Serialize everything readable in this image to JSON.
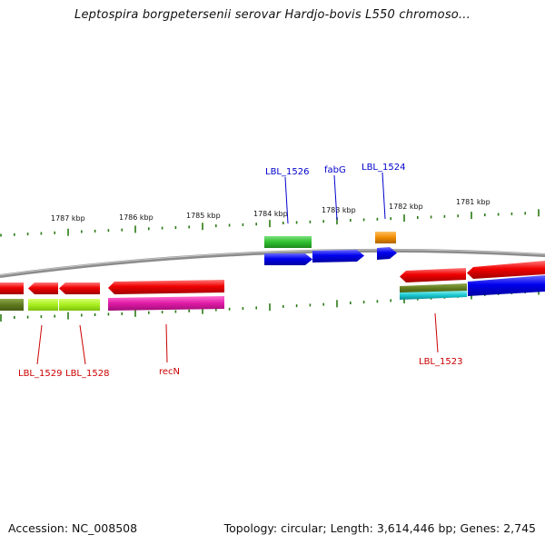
{
  "title": "Leptospira borgpetersenii serovar Hardjo-bovis L550 chromoso...",
  "footer": {
    "accession": "Accession: NC_008508",
    "info": "Topology: circular; Length: 3,614,446 bp; Genes: 2,745"
  },
  "colors": {
    "backbone": "#8c8c8c",
    "tick": "#2a7a14",
    "forward_label": "#0000cc",
    "reverse_label": "#cc0000"
  },
  "scale_labels": [
    {
      "text": "1787 kbp"
    },
    {
      "text": "1786 kbp"
    },
    {
      "text": "1785 kbp"
    },
    {
      "text": "1784 kbp"
    },
    {
      "text": "1783 kbp"
    },
    {
      "text": "1782 kbp"
    },
    {
      "text": "1781 kbp"
    }
  ],
  "forward_labels": [
    {
      "text": "LBL_1526"
    },
    {
      "text": "fabG"
    },
    {
      "text": "LBL_1524"
    }
  ],
  "reverse_labels": [
    {
      "text": "LBL_1529"
    },
    {
      "text": "LBL_1528"
    },
    {
      "text": "recN"
    },
    {
      "text": "LBL_1523"
    }
  ]
}
